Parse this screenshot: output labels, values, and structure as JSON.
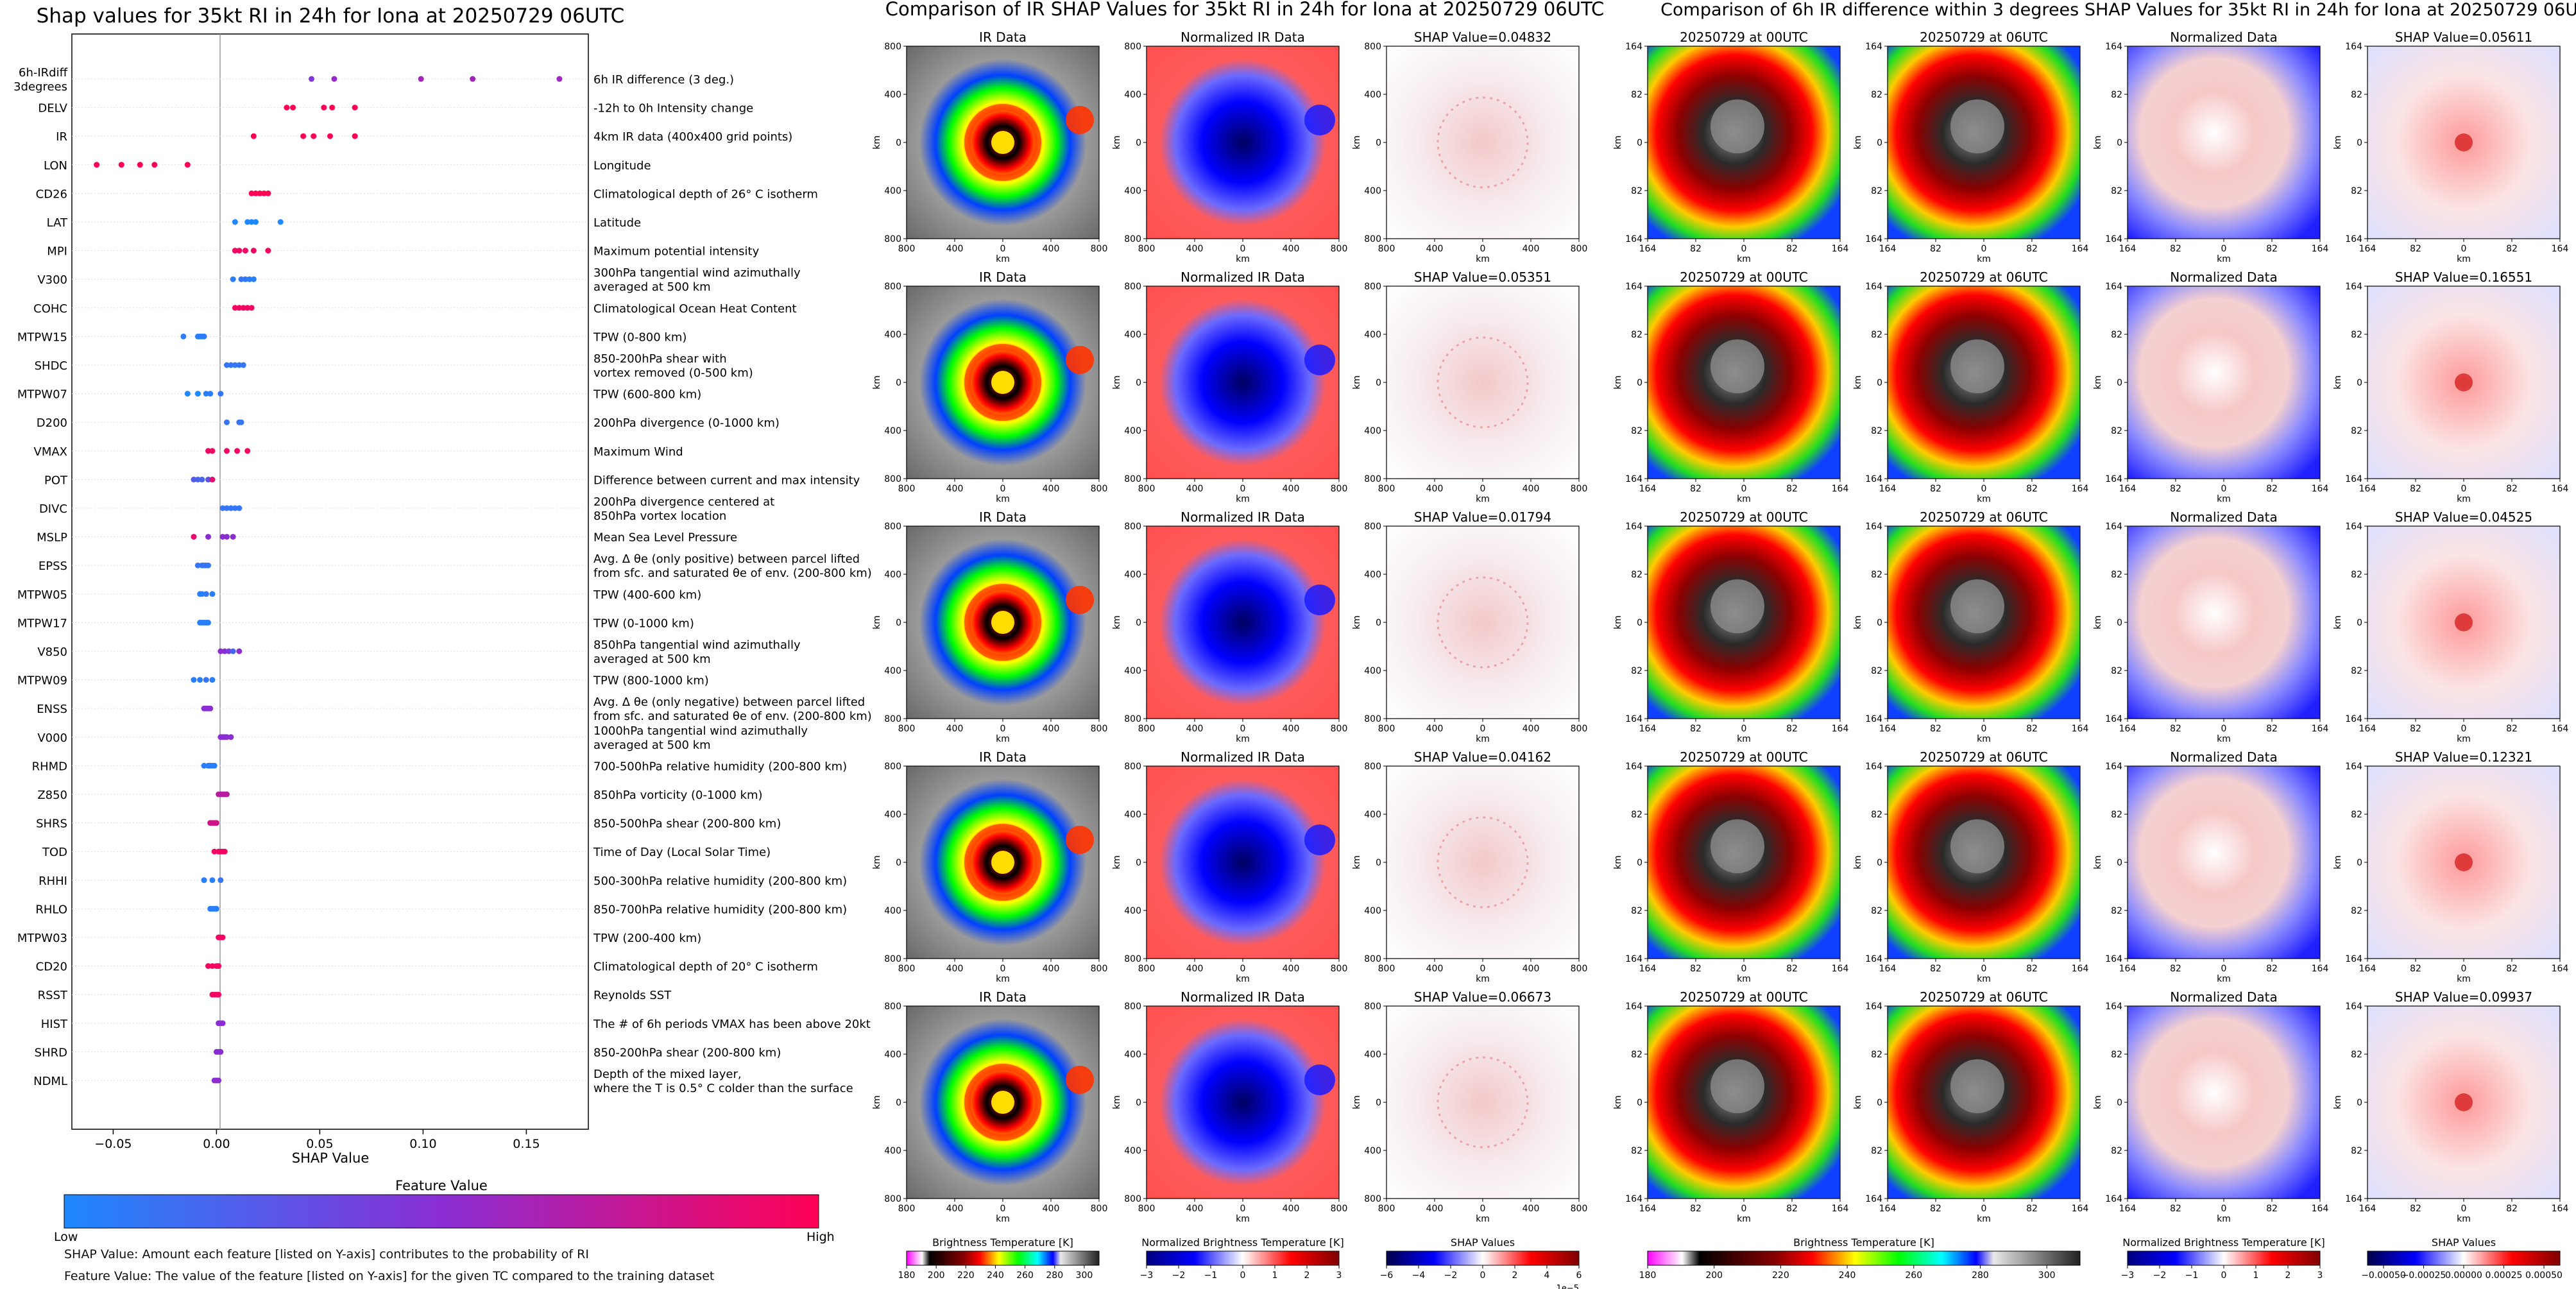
{
  "chart_data": [
    {
      "type": "scatter",
      "title": "Shap values for 35kt RI in 24h for Iona at 20250729 06UTC",
      "xlabel": "SHAP Value",
      "xlim": [
        -0.07,
        0.18
      ],
      "xticks": [
        -0.05,
        0.0,
        0.05,
        0.1,
        0.15
      ],
      "xtick_labels": [
        "−0.05",
        "0.00",
        "0.05",
        "0.10",
        "0.15"
      ],
      "features": [
        {
          "name": "6h-IRdiff\n3degrees",
          "description": "6h IR difference (3 deg.)",
          "shap": [
            0.046,
            0.057,
            0.099,
            0.124,
            0.166
          ],
          "feature_value": [
            0.45,
            0.55,
            0.6,
            0.6,
            0.58
          ]
        },
        {
          "name": "DELV",
          "description": "-12h to 0h Intensity change",
          "shap": [
            0.034,
            0.037,
            0.052,
            0.056,
            0.067
          ],
          "feature_value": [
            1,
            1,
            1,
            1,
            1
          ]
        },
        {
          "name": "IR",
          "description": "4km IR data (400x400 grid points)",
          "shap": [
            0.018,
            0.042,
            0.047,
            0.055,
            0.067
          ],
          "feature_value": [
            1,
            1,
            1,
            1,
            1
          ]
        },
        {
          "name": "LON",
          "description": "Longitude",
          "shap": [
            -0.058,
            -0.046,
            -0.037,
            -0.03,
            -0.014
          ],
          "feature_value": [
            1,
            1,
            1,
            1,
            1
          ]
        },
        {
          "name": "CD26",
          "description": "Climatological depth of 26° C isotherm",
          "shap": [
            0.017,
            0.019,
            0.021,
            0.023,
            0.025
          ],
          "feature_value": [
            1,
            1,
            1,
            1,
            1
          ]
        },
        {
          "name": "LAT",
          "description": "Latitude",
          "shap": [
            0.009,
            0.015,
            0.017,
            0.019,
            0.031
          ],
          "feature_value": [
            0,
            0,
            0,
            0,
            0
          ]
        },
        {
          "name": "MPI",
          "description": "Maximum potential intensity",
          "shap": [
            0.009,
            0.011,
            0.014,
            0.018,
            0.025
          ],
          "feature_value": [
            0.95,
            0.95,
            0.95,
            0.95,
            0.95
          ]
        },
        {
          "name": "V300",
          "description": "300hPa tangential wind azimuthally\naveraged at 500 km",
          "shap": [
            0.008,
            0.012,
            0.014,
            0.016,
            0.018
          ],
          "feature_value": [
            0.05,
            0.1,
            0.1,
            0.05,
            0.05
          ]
        },
        {
          "name": "COHC",
          "description": "Climatological Ocean Heat Content",
          "shap": [
            0.009,
            0.011,
            0.013,
            0.015,
            0.017
          ],
          "feature_value": [
            0.95,
            0.95,
            0.95,
            0.95,
            0.95
          ]
        },
        {
          "name": "MTPW15",
          "description": "TPW (0-800 km)",
          "shap": [
            -0.016,
            -0.009,
            -0.008,
            -0.007,
            -0.006
          ],
          "feature_value": [
            0.05,
            0.05,
            0.05,
            0.05,
            0.05
          ]
        },
        {
          "name": "SHDC",
          "description": "850-200hPa shear with\nvortex removed (0-500 km)",
          "shap": [
            0.005,
            0.007,
            0.009,
            0.011,
            0.013
          ],
          "feature_value": [
            0.1,
            0.1,
            0.1,
            0.1,
            0.1
          ]
        },
        {
          "name": "MTPW07",
          "description": "TPW (600-800 km)",
          "shap": [
            -0.014,
            -0.009,
            -0.005,
            -0.003,
            0.002
          ],
          "feature_value": [
            0,
            0,
            0.05,
            0.05,
            0.1
          ]
        },
        {
          "name": "D200",
          "description": "200hPa divergence (0-1000 km)",
          "shap": [
            0.005,
            0.011,
            0.012
          ],
          "feature_value": [
            0.1,
            0.1,
            0.1
          ]
        },
        {
          "name": "VMAX",
          "description": "Maximum Wind",
          "shap": [
            -0.004,
            -0.002,
            0.005,
            0.01,
            0.015
          ],
          "feature_value": [
            0.95,
            0.95,
            0.95,
            0.95,
            0.95
          ]
        },
        {
          "name": "POT",
          "description": "Difference between current and max intensity",
          "shap": [
            -0.011,
            -0.009,
            -0.007,
            -0.004,
            -0.002
          ],
          "feature_value": [
            0.25,
            0.2,
            0.2,
            0.3,
            0.9
          ]
        },
        {
          "name": "DIVC",
          "description": "200hPa divergence centered at\n850hPa vortex location",
          "shap": [
            0.003,
            0.005,
            0.007,
            0.009,
            0.011
          ],
          "feature_value": [
            0.1,
            0.1,
            0.1,
            0.1,
            0.1
          ]
        },
        {
          "name": "MSLP",
          "description": "Mean Sea Level Pressure",
          "shap": [
            -0.011,
            -0.004,
            0.003,
            0.005,
            0.008
          ],
          "feature_value": [
            0.9,
            0.5,
            0.5,
            0.5,
            0.5
          ]
        },
        {
          "name": "EPSS",
          "description": "Avg. Δ θe (only positive) between parcel lifted\nfrom sfc. and saturated θe of env. (200-800 km)",
          "shap": [
            -0.009,
            -0.007,
            -0.006,
            -0.005,
            -0.004
          ],
          "feature_value": [
            0.1,
            0.1,
            0.1,
            0.1,
            0.1
          ]
        },
        {
          "name": "MTPW05",
          "description": "TPW (400-600 km)",
          "shap": [
            -0.008,
            -0.007,
            -0.005,
            -0.002
          ],
          "feature_value": [
            0.05,
            0.05,
            0.1,
            0.05
          ]
        },
        {
          "name": "MTPW17",
          "description": "TPW (0-1000 km)",
          "shap": [
            -0.008,
            -0.007,
            -0.006,
            -0.005,
            -0.004
          ],
          "feature_value": [
            0.05,
            0.05,
            0.05,
            0.05,
            0.05
          ]
        },
        {
          "name": "V850",
          "description": "850hPa tangential wind azimuthally\naveraged at 500 km",
          "shap": [
            0.002,
            0.004,
            0.006,
            0.008,
            0.011
          ],
          "feature_value": [
            0.5,
            0.5,
            0.4,
            0.2,
            0.5
          ]
        },
        {
          "name": "MTPW09",
          "description": "TPW (800-1000 km)",
          "shap": [
            -0.011,
            -0.008,
            -0.005,
            -0.002
          ],
          "feature_value": [
            0.05,
            0.05,
            0.1,
            0.05
          ]
        },
        {
          "name": "ENSS",
          "description": "Avg. Δ θe (only negative) between parcel lifted\nfrom sfc. and saturated θe of env. (200-800 km)",
          "shap": [
            -0.006,
            -0.005,
            -0.004,
            -0.003
          ],
          "feature_value": [
            0.5,
            0.5,
            0.5,
            0.5
          ]
        },
        {
          "name": "V000",
          "description": "1000hPa tangential wind azimuthally\naveraged at 500 km",
          "shap": [
            0.002,
            0.003,
            0.004,
            0.005,
            0.007
          ],
          "feature_value": [
            0.5,
            0.5,
            0.5,
            0.5,
            0.5
          ]
        },
        {
          "name": "RHMD",
          "description": "700-500hPa relative humidity (200-800 km)",
          "shap": [
            -0.006,
            -0.004,
            -0.003,
            -0.002,
            -0.001
          ],
          "feature_value": [
            0.05,
            0.05,
            0.05,
            0.05,
            0.05
          ]
        },
        {
          "name": "Z850",
          "description": "850hPa vorticity (0-1000 km)",
          "shap": [
            0.001,
            0.002,
            0.003,
            0.004,
            0.005
          ],
          "feature_value": [
            0.7,
            0.7,
            0.7,
            0.7,
            0.7
          ]
        },
        {
          "name": "SHRS",
          "description": "850-500hPa shear (200-800 km)",
          "shap": [
            -0.003,
            -0.002,
            -0.001,
            0.0
          ],
          "feature_value": [
            0.8,
            0.8,
            0.8,
            0.8
          ]
        },
        {
          "name": "TOD",
          "description": "Time of Day (Local Solar Time)",
          "shap": [
            -0.001,
            0.001,
            0.002,
            0.003,
            0.004
          ],
          "feature_value": [
            0.95,
            0.95,
            0.95,
            0.95,
            0.95
          ]
        },
        {
          "name": "RHHI",
          "description": "500-300hPa relative humidity (200-800 km)",
          "shap": [
            -0.006,
            -0.002,
            0.002
          ],
          "feature_value": [
            0.05,
            0.05,
            0.1
          ]
        },
        {
          "name": "RHLO",
          "description": "850-700hPa relative humidity (200-800 km)",
          "shap": [
            -0.003,
            -0.002,
            -0.001,
            0.0
          ],
          "feature_value": [
            0.05,
            0.05,
            0.05,
            0.05
          ]
        },
        {
          "name": "MTPW03",
          "description": "TPW (200-400 km)",
          "shap": [
            0.001,
            0.002,
            0.003
          ],
          "feature_value": [
            0.95,
            0.95,
            0.95
          ]
        },
        {
          "name": "CD20",
          "description": "Climatological depth of 20° C isotherm",
          "shap": [
            -0.004,
            -0.002,
            0.0,
            0.001
          ],
          "feature_value": [
            0.95,
            0.95,
            0.95,
            0.95
          ]
        },
        {
          "name": "RSST",
          "description": "Reynolds SST",
          "shap": [
            -0.002,
            -0.001,
            0.0,
            0.001
          ],
          "feature_value": [
            0.95,
            0.95,
            0.95,
            0.95
          ]
        },
        {
          "name": "HIST",
          "description": "The # of 6h periods VMAX has been above 20kt",
          "shap": [
            0.001,
            0.002,
            0.003
          ],
          "feature_value": [
            0.5,
            0.5,
            0.5
          ]
        },
        {
          "name": "SHRD",
          "description": "850-200hPa shear (200-800 km)",
          "shap": [
            0.0,
            0.001,
            0.002
          ],
          "feature_value": [
            0.5,
            0.5,
            0.5
          ]
        },
        {
          "name": "NDML",
          "description": "Depth of the mixed layer,\nwhere the T is 0.5° C colder than the surface",
          "shap": [
            -0.001,
            0.0,
            0.001
          ],
          "feature_value": [
            0.5,
            0.5,
            0.5
          ]
        }
      ],
      "colorbar": {
        "label": "Feature Value",
        "low": "Low",
        "high": "High",
        "colors": [
          "#1e88ff",
          "#8a2ed4",
          "#ff0055"
        ]
      }
    },
    {
      "type": "heatmap",
      "title": "Comparison of IR SHAP Values for 35kt RI in 24h for Iona at 20250729 06UTC",
      "column_titles": [
        "IR Data",
        "Normalized IR Data",
        "SHAP Value="
      ],
      "shap_values": [
        "0.04832",
        "0.05351",
        "0.01794",
        "0.04162",
        "0.06673"
      ],
      "x_label": "km",
      "y_label": "km",
      "tick_labels_x": [
        "800",
        "400",
        "0",
        "400",
        "800"
      ],
      "tick_labels_y": [
        "800",
        "400",
        "0",
        "400",
        "800"
      ],
      "colorbars": [
        {
          "label": "Brightness Temperature [K]",
          "ticks": [
            "180",
            "200",
            "220",
            "240",
            "260",
            "280",
            "300"
          ],
          "range": [
            180,
            310
          ]
        },
        {
          "label": "Normalized Brightness Temperature [K]",
          "ticks": [
            "−3",
            "−2",
            "−1",
            "0",
            "1",
            "2",
            "3"
          ],
          "range": [
            -3,
            3
          ]
        },
        {
          "label": "SHAP Values",
          "ticks": [
            "−6",
            "−4",
            "−2",
            "0",
            "2",
            "4",
            "6"
          ],
          "range": [
            -6e-05,
            6e-05
          ],
          "offset": "1e−5"
        }
      ]
    },
    {
      "type": "heatmap",
      "title": "Comparison of 6h IR difference within 3 degrees SHAP Values for 35kt RI in 24h for Iona at 20250729 06UTC",
      "column_titles": [
        "20250729 at 00UTC",
        "20250729 at 06UTC",
        "Normalized Data",
        "SHAP Value="
      ],
      "shap_values": [
        "0.05611",
        "0.16551",
        "0.04525",
        "0.12321",
        "0.09937"
      ],
      "x_label": "km",
      "y_label": "km",
      "tick_labels_x": [
        "164",
        "82",
        "0",
        "82",
        "164"
      ],
      "tick_labels_y": [
        "164",
        "82",
        "0",
        "82",
        "164"
      ],
      "colorbars": [
        {
          "label": "Brightness Temperature [K]",
          "ticks": [
            "180",
            "200",
            "220",
            "240",
            "260",
            "280",
            "300"
          ],
          "range": [
            180,
            310
          ]
        },
        {
          "label": "Normalized Brightness Temperature [K]",
          "ticks": [
            "−3",
            "−2",
            "−1",
            "0",
            "1",
            "2",
            "3"
          ],
          "range": [
            -3,
            3
          ]
        },
        {
          "label": "SHAP Values",
          "ticks": [
            "−0.00050",
            "−0.00025",
            "0.00000",
            "0.00025",
            "0.00050"
          ],
          "range": [
            -0.0006,
            0.0006
          ]
        }
      ]
    }
  ],
  "notes": {
    "line1": "SHAP Value: Amount each feature [listed on Y-axis] contributes to the probability of RI",
    "line2": "Feature Value: The value of the feature [listed on Y-axis] for the given TC compared to the training dataset"
  }
}
